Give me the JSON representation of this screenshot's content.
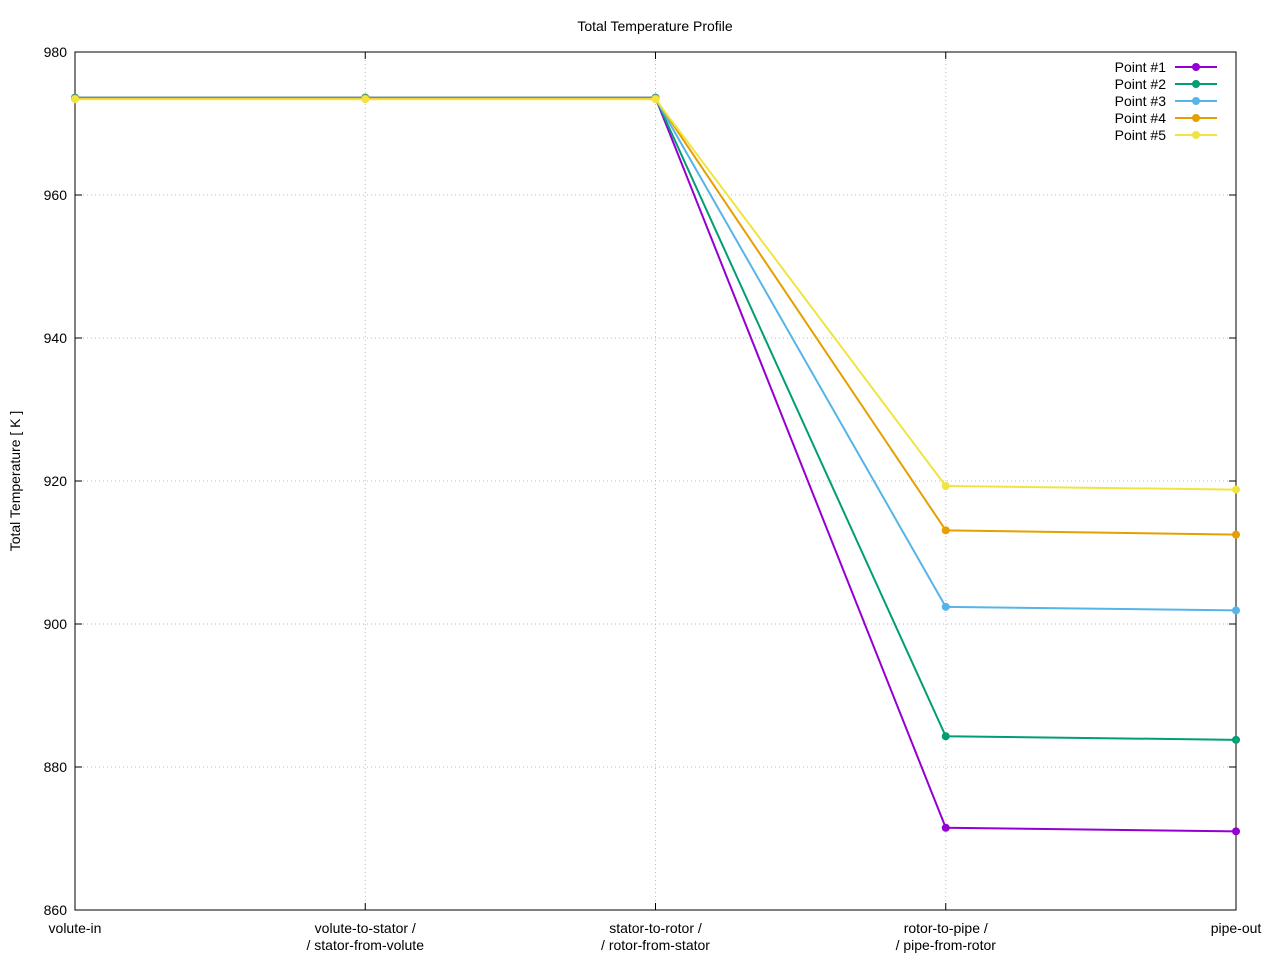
{
  "chart_data": {
    "type": "line",
    "title": "Total Temperature Profile",
    "xlabel": "",
    "ylabel": "Total Temperature [ K ]",
    "ylim": [
      860,
      980
    ],
    "yticks": [
      860,
      880,
      900,
      920,
      940,
      960,
      980
    ],
    "categories": [
      [
        "volute-in"
      ],
      [
        "volute-to-stator /",
        "/ stator-from-volute"
      ],
      [
        "stator-to-rotor /",
        "/ rotor-from-stator"
      ],
      [
        "rotor-to-pipe /",
        "/ pipe-from-rotor"
      ],
      [
        "pipe-out"
      ]
    ],
    "grid": true,
    "legend": "top-right",
    "series": [
      {
        "name": "Point #1",
        "color": "#9400d3",
        "values": [
          973.6,
          973.6,
          973.6,
          871.5,
          871.0
        ]
      },
      {
        "name": "Point #2",
        "color": "#009e73",
        "values": [
          973.6,
          973.6,
          973.6,
          884.3,
          883.8
        ]
      },
      {
        "name": "Point #3",
        "color": "#56b4e9",
        "values": [
          973.5,
          973.5,
          973.5,
          902.4,
          901.9
        ]
      },
      {
        "name": "Point #4",
        "color": "#e69f00",
        "values": [
          973.5,
          973.5,
          973.5,
          913.1,
          912.5
        ]
      },
      {
        "name": "Point #5",
        "color": "#f0e442",
        "values": [
          973.4,
          973.4,
          973.4,
          919.3,
          918.8
        ]
      }
    ]
  }
}
